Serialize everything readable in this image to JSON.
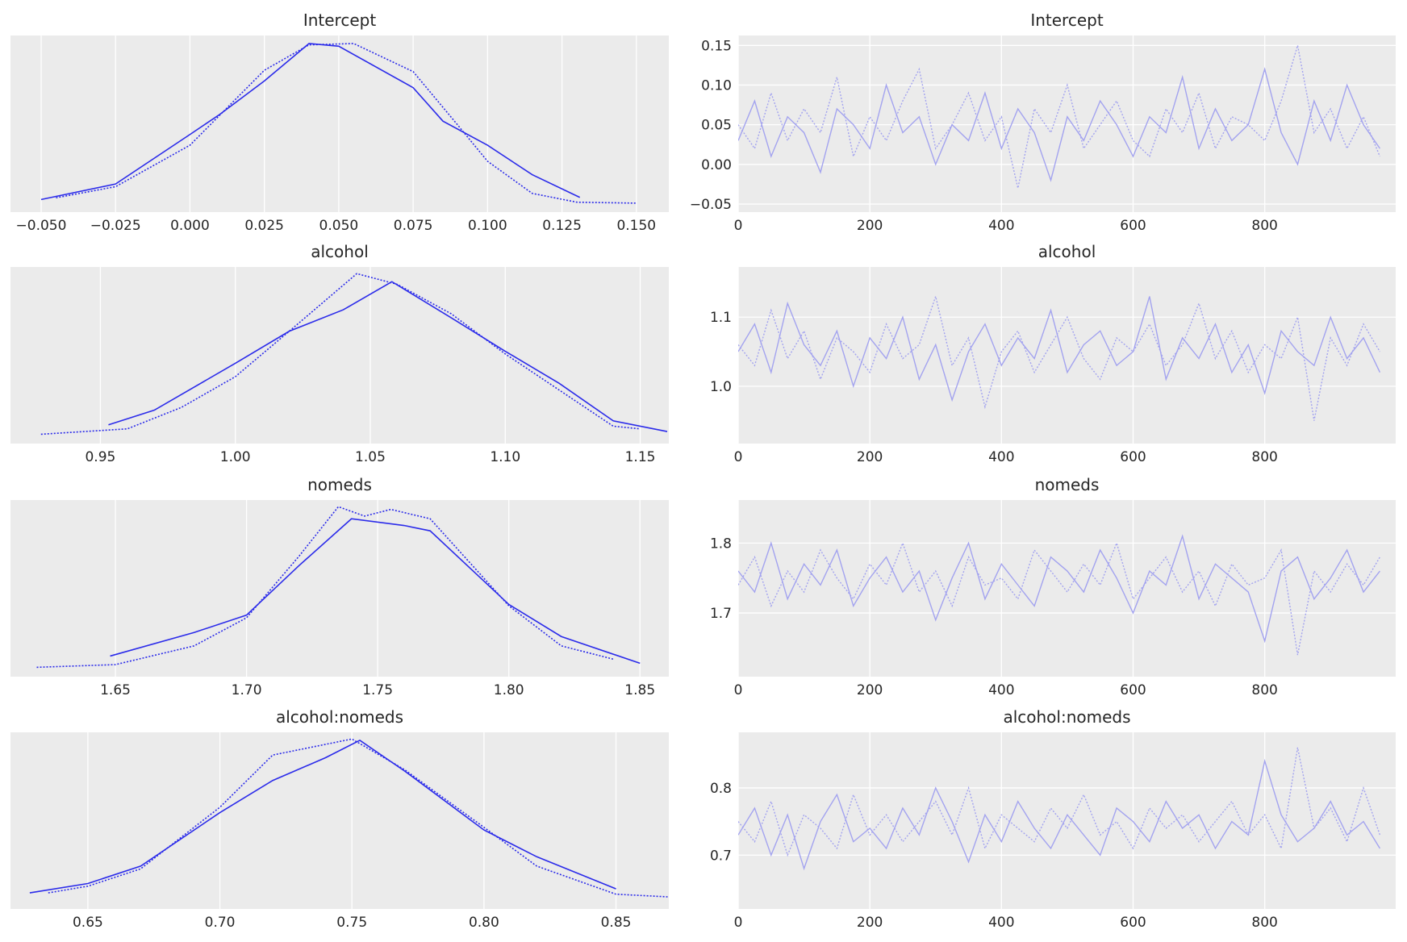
{
  "chart_data": [
    {
      "type": "line",
      "title": "Intercept",
      "grid": true,
      "xlim": [
        -0.0603,
        0.1609
      ],
      "ylim": [
        -0.6,
        12.6
      ],
      "xticks": [
        {
          "value": -0.05,
          "label": "−0.050"
        },
        {
          "value": -0.025,
          "label": "−0.025"
        },
        {
          "value": 0,
          "label": "0.000"
        },
        0.025,
        {
          "value": 0.05,
          "label": "0.050"
        },
        0.075,
        {
          "value": 0.1,
          "label": "0.100"
        },
        0.125,
        {
          "value": 0.15,
          "label": "0.150"
        }
      ],
      "series": [
        {
          "color": "#2b2bea",
          "linestyle": "solid",
          "x": [
            -0.05,
            -0.025,
            0,
            0.01,
            0.025,
            0.04,
            0.05,
            0.075,
            0.085,
            0.1,
            0.115,
            0.131
          ],
          "values": [
            0.34,
            1.5,
            5.2,
            6.7,
            9.2,
            12.0,
            11.8,
            8.7,
            6.2,
            4.4,
            2.2,
            0.5
          ]
        },
        {
          "color": "#2b2bea",
          "linestyle": "dotted",
          "x": [
            -0.045,
            -0.025,
            0,
            0.025,
            0.04,
            0.055,
            0.075,
            0.09,
            0.1,
            0.115,
            0.13,
            0.15
          ],
          "values": [
            0.47,
            1.3,
            4.4,
            10.0,
            11.9,
            12.0,
            9.9,
            5.9,
            3.2,
            0.8,
            0.14,
            0.07
          ]
        }
      ]
    },
    {
      "type": "line",
      "title": "Intercept",
      "grid": true,
      "xlim": [
        0,
        999
      ],
      "ylim": [
        -0.0602,
        0.1625
      ],
      "xticks": [
        0,
        200,
        400,
        600,
        800
      ],
      "yticks": [
        {
          "value": -0.05,
          "label": "−0.05"
        },
        {
          "value": 0,
          "label": "0.00"
        },
        0.05,
        {
          "value": 0.1,
          "label": "0.10"
        },
        0.15
      ],
      "x": [
        0,
        25,
        50,
        75,
        100,
        125,
        150,
        175,
        200,
        225,
        250,
        275,
        300,
        325,
        350,
        375,
        400,
        425,
        450,
        475,
        500,
        525,
        550,
        575,
        600,
        625,
        650,
        675,
        700,
        725,
        750,
        775,
        800,
        825,
        850,
        875,
        900,
        925,
        950,
        975
      ],
      "series": [
        {
          "color": "#a3a3ef",
          "linestyle": "solid",
          "values": [
            0.03,
            0.08,
            0.01,
            0.06,
            0.04,
            -0.01,
            0.07,
            0.05,
            0.02,
            0.1,
            0.04,
            0.06,
            0.0,
            0.05,
            0.03,
            0.09,
            0.02,
            0.07,
            0.04,
            -0.02,
            0.06,
            0.03,
            0.08,
            0.05,
            0.01,
            0.06,
            0.04,
            0.11,
            0.02,
            0.07,
            0.03,
            0.05,
            0.12,
            0.04,
            0.0,
            0.08,
            0.03,
            0.1,
            0.05,
            0.02
          ]
        },
        {
          "color": "#a3a3ef",
          "linestyle": "dotted",
          "values": [
            0.05,
            0.02,
            0.09,
            0.03,
            0.07,
            0.04,
            0.11,
            0.01,
            0.06,
            0.03,
            0.08,
            0.12,
            0.02,
            0.05,
            0.09,
            0.03,
            0.06,
            -0.03,
            0.07,
            0.04,
            0.1,
            0.02,
            0.05,
            0.08,
            0.03,
            0.01,
            0.07,
            0.04,
            0.09,
            0.02,
            0.06,
            0.05,
            0.03,
            0.08,
            0.15,
            0.04,
            0.07,
            0.02,
            0.06,
            0.01
          ]
        }
      ]
    },
    {
      "type": "line",
      "title": "alcohol",
      "grid": true,
      "xlim": [
        0.9167,
        1.1606
      ],
      "ylim": [
        -0.6,
        12.6
      ],
      "xticks": [
        0.95,
        {
          "value": 1.0,
          "label": "1.00"
        },
        1.05,
        {
          "value": 1.1,
          "label": "1.10"
        },
        1.15
      ],
      "series": [
        {
          "color": "#2b2bea",
          "linestyle": "solid",
          "x": [
            0.953,
            0.97,
            1.0,
            1.02,
            1.04,
            1.058,
            1.08,
            1.1,
            1.12,
            1.14,
            1.16
          ],
          "values": [
            0.8,
            1.9,
            5.4,
            7.8,
            9.4,
            11.5,
            8.8,
            6.3,
            3.9,
            1.1,
            0.3
          ]
        },
        {
          "color": "#2b2bea",
          "linestyle": "dotted",
          "x": [
            0.928,
            0.96,
            0.98,
            1.0,
            1.02,
            1.045,
            1.06,
            1.08,
            1.1,
            1.12,
            1.14,
            1.15
          ],
          "values": [
            0.1,
            0.5,
            2.1,
            4.4,
            7.8,
            12.1,
            11.3,
            9.1,
            6.1,
            3.4,
            0.7,
            0.5
          ]
        }
      ]
    },
    {
      "type": "line",
      "title": "alcohol",
      "grid": true,
      "xlim": [
        0,
        999
      ],
      "ylim": [
        0.9169,
        1.1727
      ],
      "xticks": [
        0,
        200,
        400,
        600,
        800
      ],
      "yticks": [
        {
          "value": 1.0,
          "label": "1.0"
        },
        1.1
      ],
      "x": [
        0,
        25,
        50,
        75,
        100,
        125,
        150,
        175,
        200,
        225,
        250,
        275,
        300,
        325,
        350,
        375,
        400,
        425,
        450,
        475,
        500,
        525,
        550,
        575,
        600,
        625,
        650,
        675,
        700,
        725,
        750,
        775,
        800,
        825,
        850,
        875,
        900,
        925,
        950,
        975
      ],
      "series": [
        {
          "color": "#a3a3ef",
          "linestyle": "solid",
          "values": [
            1.05,
            1.09,
            1.02,
            1.12,
            1.06,
            1.03,
            1.08,
            1.0,
            1.07,
            1.04,
            1.1,
            1.01,
            1.06,
            0.98,
            1.05,
            1.09,
            1.03,
            1.07,
            1.04,
            1.11,
            1.02,
            1.06,
            1.08,
            1.03,
            1.05,
            1.13,
            1.01,
            1.07,
            1.04,
            1.09,
            1.02,
            1.06,
            0.99,
            1.08,
            1.05,
            1.03,
            1.1,
            1.04,
            1.07,
            1.02
          ]
        },
        {
          "color": "#a3a3ef",
          "linestyle": "dotted",
          "values": [
            1.06,
            1.03,
            1.11,
            1.04,
            1.08,
            1.01,
            1.07,
            1.05,
            1.02,
            1.09,
            1.04,
            1.06,
            1.13,
            1.03,
            1.07,
            0.97,
            1.05,
            1.08,
            1.02,
            1.06,
            1.1,
            1.04,
            1.01,
            1.07,
            1.05,
            1.09,
            1.03,
            1.06,
            1.12,
            1.04,
            1.08,
            1.02,
            1.06,
            1.04,
            1.1,
            0.95,
            1.07,
            1.03,
            1.09,
            1.05
          ]
        }
      ]
    },
    {
      "type": "line",
      "title": "nomeds",
      "grid": true,
      "xlim": [
        1.61,
        1.861
      ],
      "ylim": [
        -0.6,
        12.6
      ],
      "xticks": [
        1.65,
        {
          "value": 1.7,
          "label": "1.70"
        },
        1.75,
        {
          "value": 1.8,
          "label": "1.80"
        },
        1.85
      ],
      "series": [
        {
          "color": "#2b2bea",
          "linestyle": "solid",
          "x": [
            1.648,
            1.68,
            1.7,
            1.72,
            1.74,
            1.76,
            1.77,
            1.8,
            1.82,
            1.85
          ],
          "values": [
            0.94,
            2.7,
            4.0,
            7.7,
            11.2,
            10.7,
            10.3,
            4.8,
            2.4,
            0.4
          ]
        },
        {
          "color": "#2b2bea",
          "linestyle": "dotted",
          "x": [
            1.62,
            1.65,
            1.68,
            1.7,
            1.72,
            1.735,
            1.745,
            1.755,
            1.77,
            1.8,
            1.82,
            1.84
          ],
          "values": [
            0.1,
            0.3,
            1.7,
            3.8,
            8.4,
            12.1,
            11.4,
            11.9,
            11.2,
            4.7,
            1.7,
            0.7
          ]
        }
      ]
    },
    {
      "type": "line",
      "title": "nomeds",
      "grid": true,
      "xlim": [
        0,
        999
      ],
      "ylim": [
        1.609,
        1.8615
      ],
      "xticks": [
        0,
        200,
        400,
        600,
        800
      ],
      "yticks": [
        1.7,
        1.8
      ],
      "x": [
        0,
        25,
        50,
        75,
        100,
        125,
        150,
        175,
        200,
        225,
        250,
        275,
        300,
        325,
        350,
        375,
        400,
        425,
        450,
        475,
        500,
        525,
        550,
        575,
        600,
        625,
        650,
        675,
        700,
        725,
        750,
        775,
        800,
        825,
        850,
        875,
        900,
        925,
        950,
        975
      ],
      "series": [
        {
          "color": "#a3a3ef",
          "linestyle": "solid",
          "values": [
            1.76,
            1.73,
            1.8,
            1.72,
            1.77,
            1.74,
            1.79,
            1.71,
            1.75,
            1.78,
            1.73,
            1.76,
            1.69,
            1.75,
            1.8,
            1.72,
            1.77,
            1.74,
            1.71,
            1.78,
            1.76,
            1.73,
            1.79,
            1.75,
            1.7,
            1.76,
            1.74,
            1.81,
            1.72,
            1.77,
            1.75,
            1.73,
            1.66,
            1.76,
            1.78,
            1.72,
            1.75,
            1.79,
            1.73,
            1.76
          ]
        },
        {
          "color": "#a3a3ef",
          "linestyle": "dotted",
          "values": [
            1.74,
            1.78,
            1.71,
            1.76,
            1.73,
            1.79,
            1.75,
            1.72,
            1.77,
            1.74,
            1.8,
            1.73,
            1.76,
            1.71,
            1.78,
            1.74,
            1.75,
            1.72,
            1.79,
            1.76,
            1.73,
            1.77,
            1.74,
            1.8,
            1.72,
            1.75,
            1.78,
            1.73,
            1.76,
            1.71,
            1.77,
            1.74,
            1.75,
            1.79,
            1.64,
            1.76,
            1.73,
            1.77,
            1.74,
            1.78
          ]
        }
      ]
    },
    {
      "type": "line",
      "title": "alcohol:nomeds",
      "grid": true,
      "xlim": [
        0.6207,
        0.87
      ],
      "ylim": [
        -0.6,
        12.6
      ],
      "xticks": [
        0.65,
        {
          "value": 0.7,
          "label": "0.70"
        },
        0.75,
        {
          "value": 0.8,
          "label": "0.80"
        },
        0.85
      ],
      "series": [
        {
          "color": "#2b2bea",
          "linestyle": "solid",
          "x": [
            0.628,
            0.65,
            0.67,
            0.7,
            0.72,
            0.74,
            0.753,
            0.77,
            0.8,
            0.82,
            0.85
          ],
          "values": [
            0.6,
            1.3,
            2.6,
            6.6,
            9.0,
            10.7,
            12.0,
            9.7,
            5.3,
            3.3,
            0.9
          ]
        },
        {
          "color": "#2b2bea",
          "linestyle": "dotted",
          "x": [
            0.635,
            0.65,
            0.67,
            0.7,
            0.72,
            0.75,
            0.77,
            0.8,
            0.82,
            0.85,
            0.87
          ],
          "values": [
            0.6,
            1.1,
            2.4,
            7.0,
            10.9,
            12.1,
            9.8,
            5.5,
            2.6,
            0.5,
            0.3
          ]
        }
      ]
    },
    {
      "type": "line",
      "title": "alcohol:nomeds",
      "grid": true,
      "xlim": [
        0,
        999
      ],
      "ylim": [
        0.62,
        0.8827
      ],
      "xticks": [
        0,
        200,
        400,
        600,
        800
      ],
      "yticks": [
        0.7,
        0.8
      ],
      "x": [
        0,
        25,
        50,
        75,
        100,
        125,
        150,
        175,
        200,
        225,
        250,
        275,
        300,
        325,
        350,
        375,
        400,
        425,
        450,
        475,
        500,
        525,
        550,
        575,
        600,
        625,
        650,
        675,
        700,
        725,
        750,
        775,
        800,
        825,
        850,
        875,
        900,
        925,
        950,
        975
      ],
      "series": [
        {
          "color": "#a3a3ef",
          "linestyle": "solid",
          "values": [
            0.73,
            0.77,
            0.7,
            0.76,
            0.68,
            0.75,
            0.79,
            0.72,
            0.74,
            0.71,
            0.77,
            0.73,
            0.8,
            0.75,
            0.69,
            0.76,
            0.72,
            0.78,
            0.74,
            0.71,
            0.76,
            0.73,
            0.7,
            0.77,
            0.75,
            0.72,
            0.78,
            0.74,
            0.76,
            0.71,
            0.75,
            0.73,
            0.84,
            0.76,
            0.72,
            0.74,
            0.78,
            0.73,
            0.75,
            0.71
          ]
        },
        {
          "color": "#a3a3ef",
          "linestyle": "dotted",
          "values": [
            0.75,
            0.72,
            0.78,
            0.7,
            0.76,
            0.74,
            0.71,
            0.79,
            0.73,
            0.76,
            0.72,
            0.75,
            0.78,
            0.73,
            0.8,
            0.71,
            0.76,
            0.74,
            0.72,
            0.77,
            0.74,
            0.79,
            0.73,
            0.75,
            0.71,
            0.77,
            0.74,
            0.76,
            0.72,
            0.75,
            0.78,
            0.73,
            0.76,
            0.71,
            0.86,
            0.74,
            0.77,
            0.72,
            0.8,
            0.73
          ]
        }
      ]
    }
  ]
}
